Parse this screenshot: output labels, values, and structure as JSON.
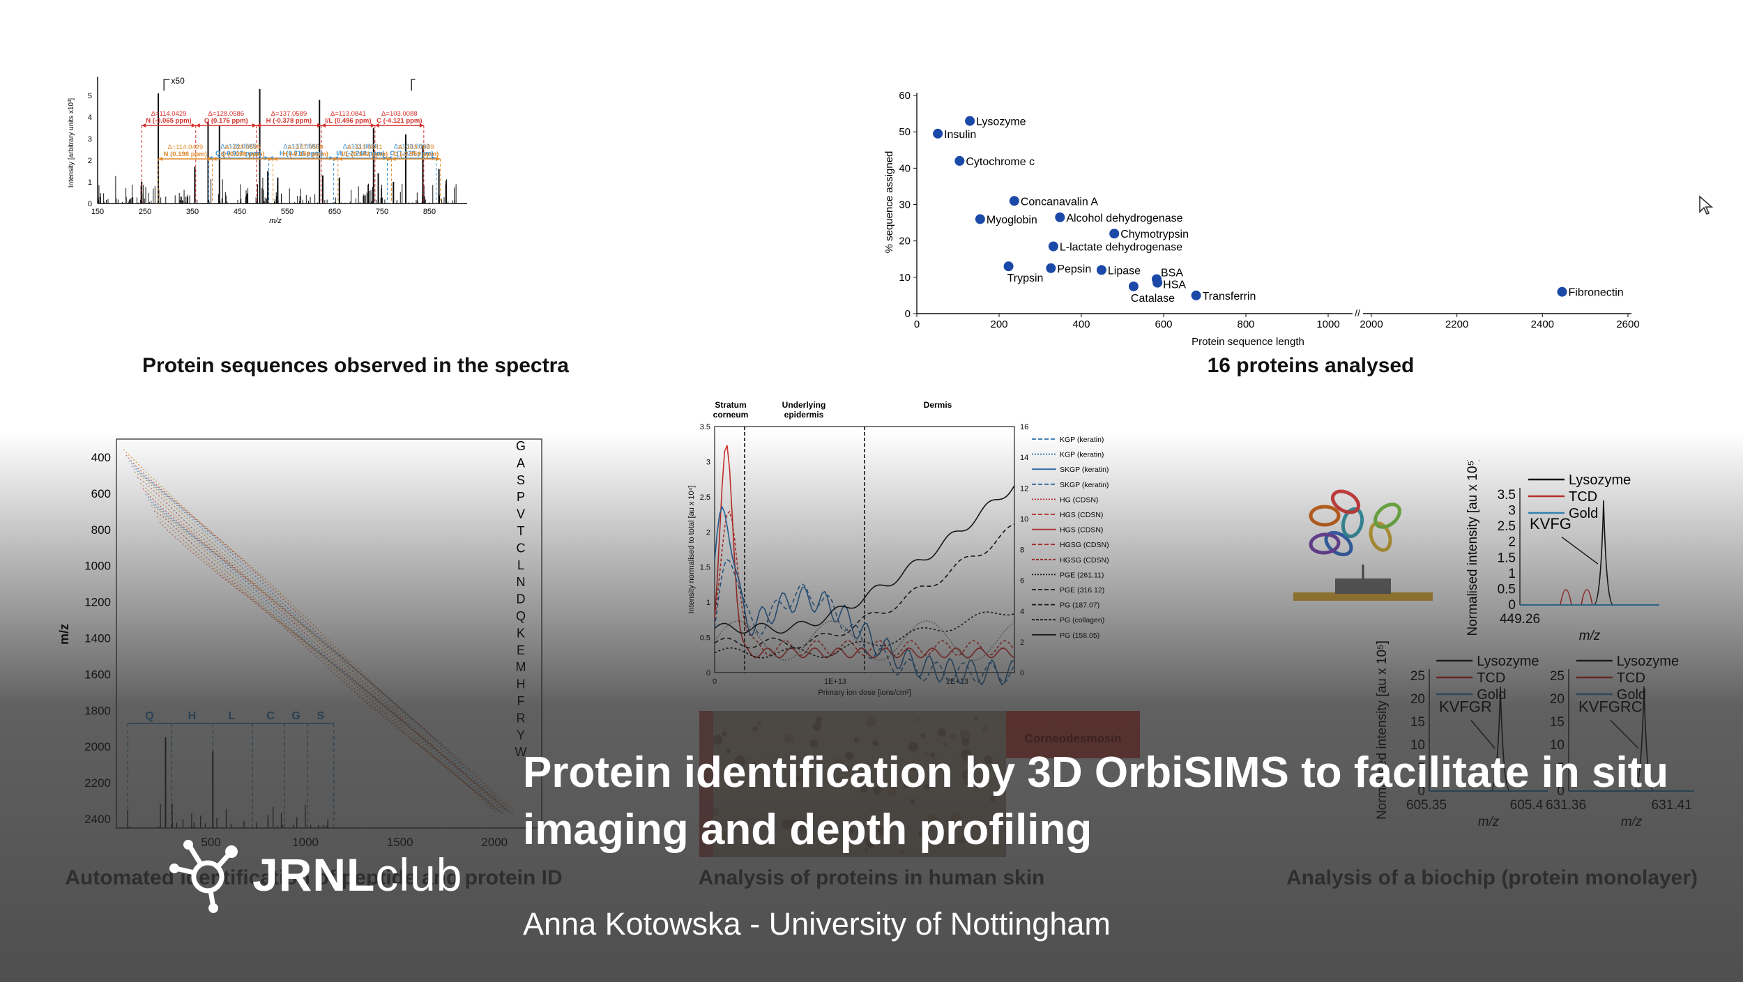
{
  "slide": {
    "title": "Protein identification by 3D OrbiSIMS to facilitate in situ imaging and depth profiling",
    "subtitle": "Anna Kotowska - University of Nottingham",
    "brand": {
      "bold": "JRNL",
      "light": "club"
    }
  },
  "captions": {
    "spectra": "Protein sequences observed in the spectra",
    "proteins": "16 proteins analysed",
    "automated": "Automated identification of peptide and protein ID",
    "skin": "Analysis of proteins in human skin",
    "biochip": "Analysis of a biochip (protein monolayer)"
  },
  "spectrum": {
    "x50_label": "x50",
    "xlabel": "m/z",
    "ylabel": "Intensity [arbitrary units x10³]",
    "x_ticks": [
      "150",
      "250",
      "350",
      "450",
      "550",
      "650",
      "750",
      "850"
    ],
    "y_ticks": [
      "0",
      "1",
      "2",
      "3",
      "4",
      "5",
      "6"
    ],
    "red_row1": [
      {
        "delta": "Δ=114.0429",
        "label": "N (-0.065 ppm)"
      },
      {
        "delta": "Δ=128.0586",
        "label": "Q (0.176 ppm)"
      },
      {
        "delta": "Δ=137.0589",
        "label": "H (-0.378 ppm)"
      },
      {
        "delta": "Δ=113.0841",
        "label": "I/L (0.496 ppm)"
      },
      {
        "delta": "Δ=103.0088",
        "label": "C (-4.121 ppm)"
      }
    ],
    "blue_row": [
      {
        "delta": "Δ=128.0585",
        "label": "Q (-0.917 ppm)"
      },
      {
        "delta": "Δ=137.0580",
        "label": "H (0.716 ppm)"
      },
      {
        "delta": "Δ=113.0838",
        "label": "I/L (-2.248 ppm)"
      },
      {
        "delta": "Δ=103.0093",
        "label": "C (1.025 ppm)"
      }
    ],
    "orange_row": [
      {
        "delta": "Δ=114.0429",
        "label": "N (0.198 ppm)"
      },
      {
        "delta": "Δ=128.0585",
        "label": "Q (0.098 ppm)"
      },
      {
        "delta": "Δ=137.0589",
        "label": "H (-0.159 ppm)"
      },
      {
        "delta": "Δ=113.0841",
        "label": "I/L (0.142 ppm)"
      },
      {
        "delta": "Δ=103.0089",
        "label": "C (-2.959 ppm)"
      }
    ]
  },
  "chart_data": [
    {
      "type": "scatter",
      "xlabel": "Protein sequence length",
      "ylabel": "% sequence assigned",
      "ylim": [
        0,
        60
      ],
      "x_ticks": [
        "0",
        "200",
        "400",
        "600",
        "800",
        "1000",
        "2000",
        "2200",
        "2400",
        "2600"
      ],
      "y_ticks": [
        "0",
        "10",
        "20",
        "30",
        "40",
        "50",
        "60"
      ],
      "axis_break": "//",
      "points": [
        {
          "name": "Lysozyme",
          "x": 129,
          "y": 53
        },
        {
          "name": "Insulin",
          "x": 51,
          "y": 49.5
        },
        {
          "name": "Cytochrome c",
          "x": 104,
          "y": 42
        },
        {
          "name": "Concanavalin A",
          "x": 237,
          "y": 31
        },
        {
          "name": "Myoglobin",
          "x": 154,
          "y": 26
        },
        {
          "name": "Alcohol dehydrogenase",
          "x": 348,
          "y": 26.5
        },
        {
          "name": "Chymotrypsin",
          "x": 480,
          "y": 22
        },
        {
          "name": "L-lactate dehydrogenase",
          "x": 332,
          "y": 18.5
        },
        {
          "name": "Trypsin",
          "x": 223,
          "y": 13
        },
        {
          "name": "Pepsin",
          "x": 326,
          "y": 12.5
        },
        {
          "name": "Lipase",
          "x": 449,
          "y": 12
        },
        {
          "name": "BSA",
          "x": 583,
          "y": 9.5
        },
        {
          "name": "HSA",
          "x": 585,
          "y": 8.5
        },
        {
          "name": "Catalase",
          "x": 527,
          "y": 7.5
        },
        {
          "name": "Transferrin",
          "x": 679,
          "y": 5
        },
        {
          "name": "Fibronectin",
          "x": 2446,
          "y": 6
        }
      ],
      "colors": {
        "points": "#1a49a8"
      }
    },
    {
      "type": "scatter",
      "xlabel": "m/z",
      "ylabel": "m/z",
      "x_ticks": [
        "500",
        "1000",
        "1500",
        "2000"
      ],
      "y_ticks": [
        "400",
        "600",
        "800",
        "1000",
        "1200",
        "1400",
        "1600",
        "1800",
        "2000",
        "2200",
        "2400"
      ],
      "residue_labels": [
        "G",
        "A",
        "S",
        "P",
        "V",
        "T",
        "C",
        "L",
        "N",
        "D",
        "Q",
        "K",
        "E",
        "M",
        "H",
        "F",
        "R",
        "Y",
        "W"
      ],
      "sequence_labels": [
        "Q",
        "H",
        "L",
        "C",
        "G",
        "S"
      ]
    },
    {
      "type": "line",
      "xlabel": "Primary ion dose [ions/cm²]",
      "ylabel": "Intensity normalised to total [au x 10⁴]",
      "x_ticks": [
        "0",
        "1E+13",
        "2E+13"
      ],
      "y_ticks_left": [
        "0",
        "0.5",
        "1",
        "1.5",
        "2",
        "2.5",
        "3",
        "3.5"
      ],
      "y_ticks_right": [
        "0",
        "2",
        "4",
        "6",
        "8",
        "10",
        "12",
        "14",
        "16"
      ],
      "regions": [
        "Stratum corneum",
        "Underlying epidermis",
        "Dermis"
      ],
      "legend": [
        "KGP (keratin)",
        "KGP (keratin)",
        "SKGP (keratin)",
        "SKGP (keratin)",
        "HG (CDSN)",
        "HGS (CDSN)",
        "HGS (CDSN)",
        "HGSG (CDSN)",
        "HGSG (CDSN)",
        "PGE (261.11)",
        "PGE (316.12)",
        "PG (187.07)",
        "PG (collagen)",
        "PG (158.05)"
      ],
      "image_labels": [
        "Corneodesmosin"
      ]
    },
    {
      "type": "line",
      "ylabel": "Normalised intensity [au x 10⁵]",
      "xlabel": "m/z",
      "x_ticks": [
        "449.26"
      ],
      "y_ticks": [
        "0",
        "0.5",
        "1",
        "1.5",
        "2",
        "2.5",
        "3",
        "3.5"
      ],
      "annotation": "KVFG",
      "legend": [
        "Lysozyme",
        "TCD",
        "Gold"
      ]
    },
    {
      "type": "line",
      "ylabel": "Normalised intensity [au x 10⁵]",
      "xlabel": "m/z",
      "x_ticks": [
        "605.35",
        "605.4"
      ],
      "y_ticks": [
        "0",
        "5",
        "10",
        "15",
        "20",
        "25"
      ],
      "annotation": "KVFGR",
      "legend": [
        "Lysozyme",
        "TCD",
        "Gold"
      ]
    },
    {
      "type": "line",
      "xlabel": "m/z",
      "x_ticks": [
        "631.36",
        "631.41"
      ],
      "y_ticks": [
        "0",
        "5",
        "10",
        "15",
        "20",
        "25"
      ],
      "annotation": "KVFGRC",
      "legend": [
        "Lysozyme",
        "TCD",
        "Gold"
      ]
    }
  ],
  "colors": {
    "red": "#d6302b",
    "blue": "#3a8fd0",
    "orange": "#e08a2c",
    "dark": "#1a49a8"
  }
}
